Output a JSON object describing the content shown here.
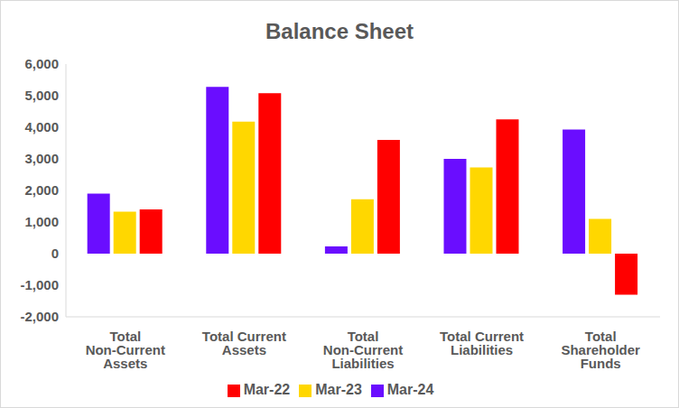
{
  "chart_data": {
    "type": "bar",
    "title": "Balance Sheet",
    "categories": [
      "Total Non-Current Assets",
      "Total Current Assets",
      "Total Non-Current Liabilities",
      "Total Current Liabilities",
      "Total Shareholder Funds"
    ],
    "series": [
      {
        "name": "Mar-24",
        "color": "#6a0dff",
        "values": [
          1900,
          5280,
          230,
          3000,
          3930
        ]
      },
      {
        "name": "Mar-23",
        "color": "#ffd700",
        "values": [
          1330,
          4180,
          1720,
          2730,
          1100
        ]
      },
      {
        "name": "Mar-22",
        "color": "#ff0000",
        "values": [
          1400,
          5080,
          3600,
          4250,
          -1300
        ]
      }
    ],
    "ylim": [
      -2000,
      6000
    ],
    "yticks": [
      {
        "value": -2000,
        "label": "-2,000"
      },
      {
        "value": -1000,
        "label": "-1,000"
      },
      0,
      {
        "value": 1000,
        "label": "1,000"
      },
      {
        "value": 2000,
        "label": "2,000"
      },
      {
        "value": 3000,
        "label": "3,000"
      },
      {
        "value": 4000,
        "label": "4,000"
      },
      {
        "value": 5000,
        "label": "5,000"
      },
      {
        "value": 6000,
        "label": "6,000"
      }
    ],
    "grid": false,
    "legend": "bottom"
  }
}
